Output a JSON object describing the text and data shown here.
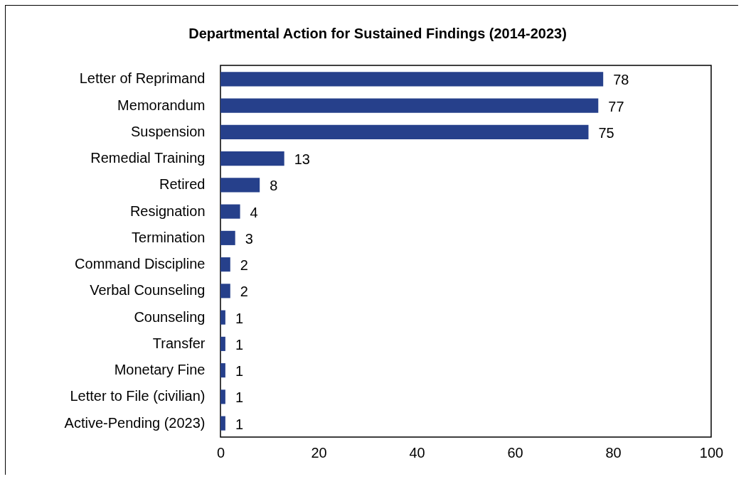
{
  "chart_data": {
    "type": "bar",
    "orientation": "horizontal",
    "title": "Departmental Action for Sustained Findings (2014-2023)",
    "categories": [
      "Letter of Reprimand",
      "Memorandum",
      "Suspension",
      "Remedial Training",
      "Retired",
      "Resignation",
      "Termination",
      "Command Discipline",
      "Verbal Counseling",
      "Counseling",
      "Transfer",
      "Monetary Fine",
      "Letter to File (civilian)",
      "Active-Pending (2023)"
    ],
    "values": [
      78,
      77,
      75,
      13,
      8,
      4,
      3,
      2,
      2,
      1,
      1,
      1,
      1,
      1
    ],
    "color": "#26408b",
    "xlim": [
      0,
      100
    ],
    "xticks": [
      0,
      20,
      40,
      60,
      80,
      100
    ],
    "data_labels": true
  }
}
